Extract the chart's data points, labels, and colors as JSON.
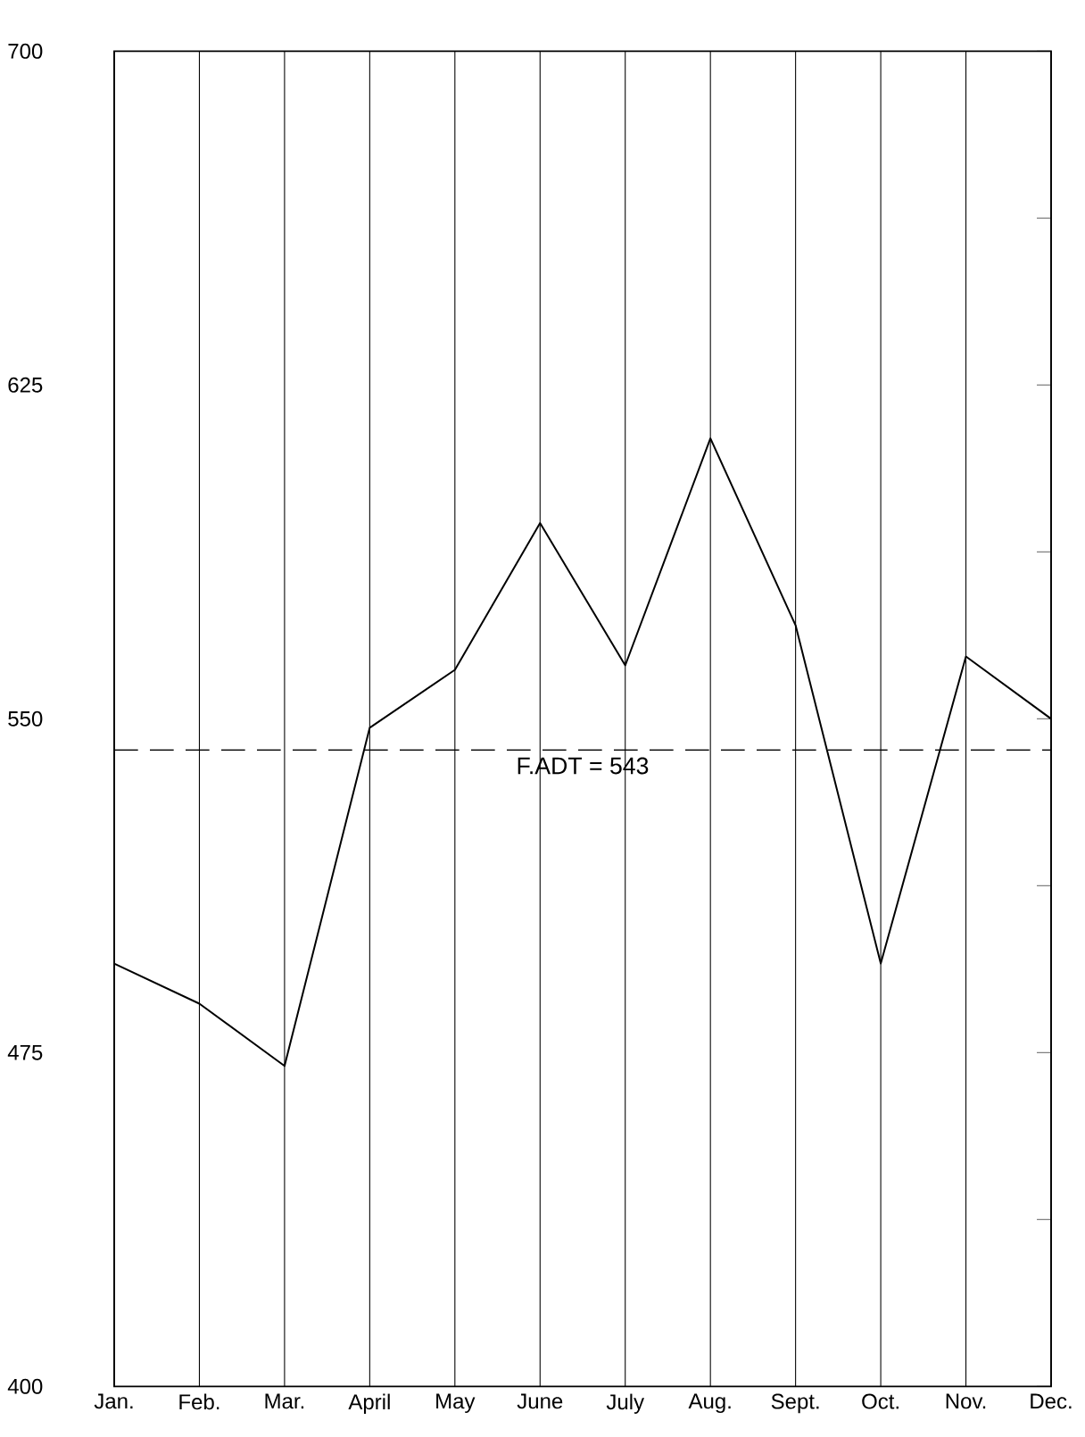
{
  "chart_data": {
    "type": "line",
    "categories": [
      "Jan.",
      "Feb.",
      "Mar.",
      "April",
      "May",
      "June",
      "July",
      "Aug.",
      "Sept.",
      "Oct.",
      "Nov.",
      "Dec."
    ],
    "series": [
      {
        "color": "#000000",
        "values": [
          495,
          486,
          472,
          548,
          561,
          594,
          562,
          613,
          571,
          495,
          564,
          550
        ]
      }
    ],
    "ylim": [
      400,
      700
    ],
    "yticks": [
      400,
      {
        "value": 437.5,
        "label": null
      },
      475,
      {
        "value": 512.5,
        "label": null
      },
      550,
      {
        "value": 587.5,
        "label": null
      },
      625,
      {
        "value": 662.5,
        "label": null
      },
      700
    ],
    "grid": "x",
    "ref_lines": [
      {
        "axis": "y",
        "value": 543,
        "label": "F.ADT = 543",
        "line_style": "dashed",
        "color": "#000000"
      }
    ]
  }
}
